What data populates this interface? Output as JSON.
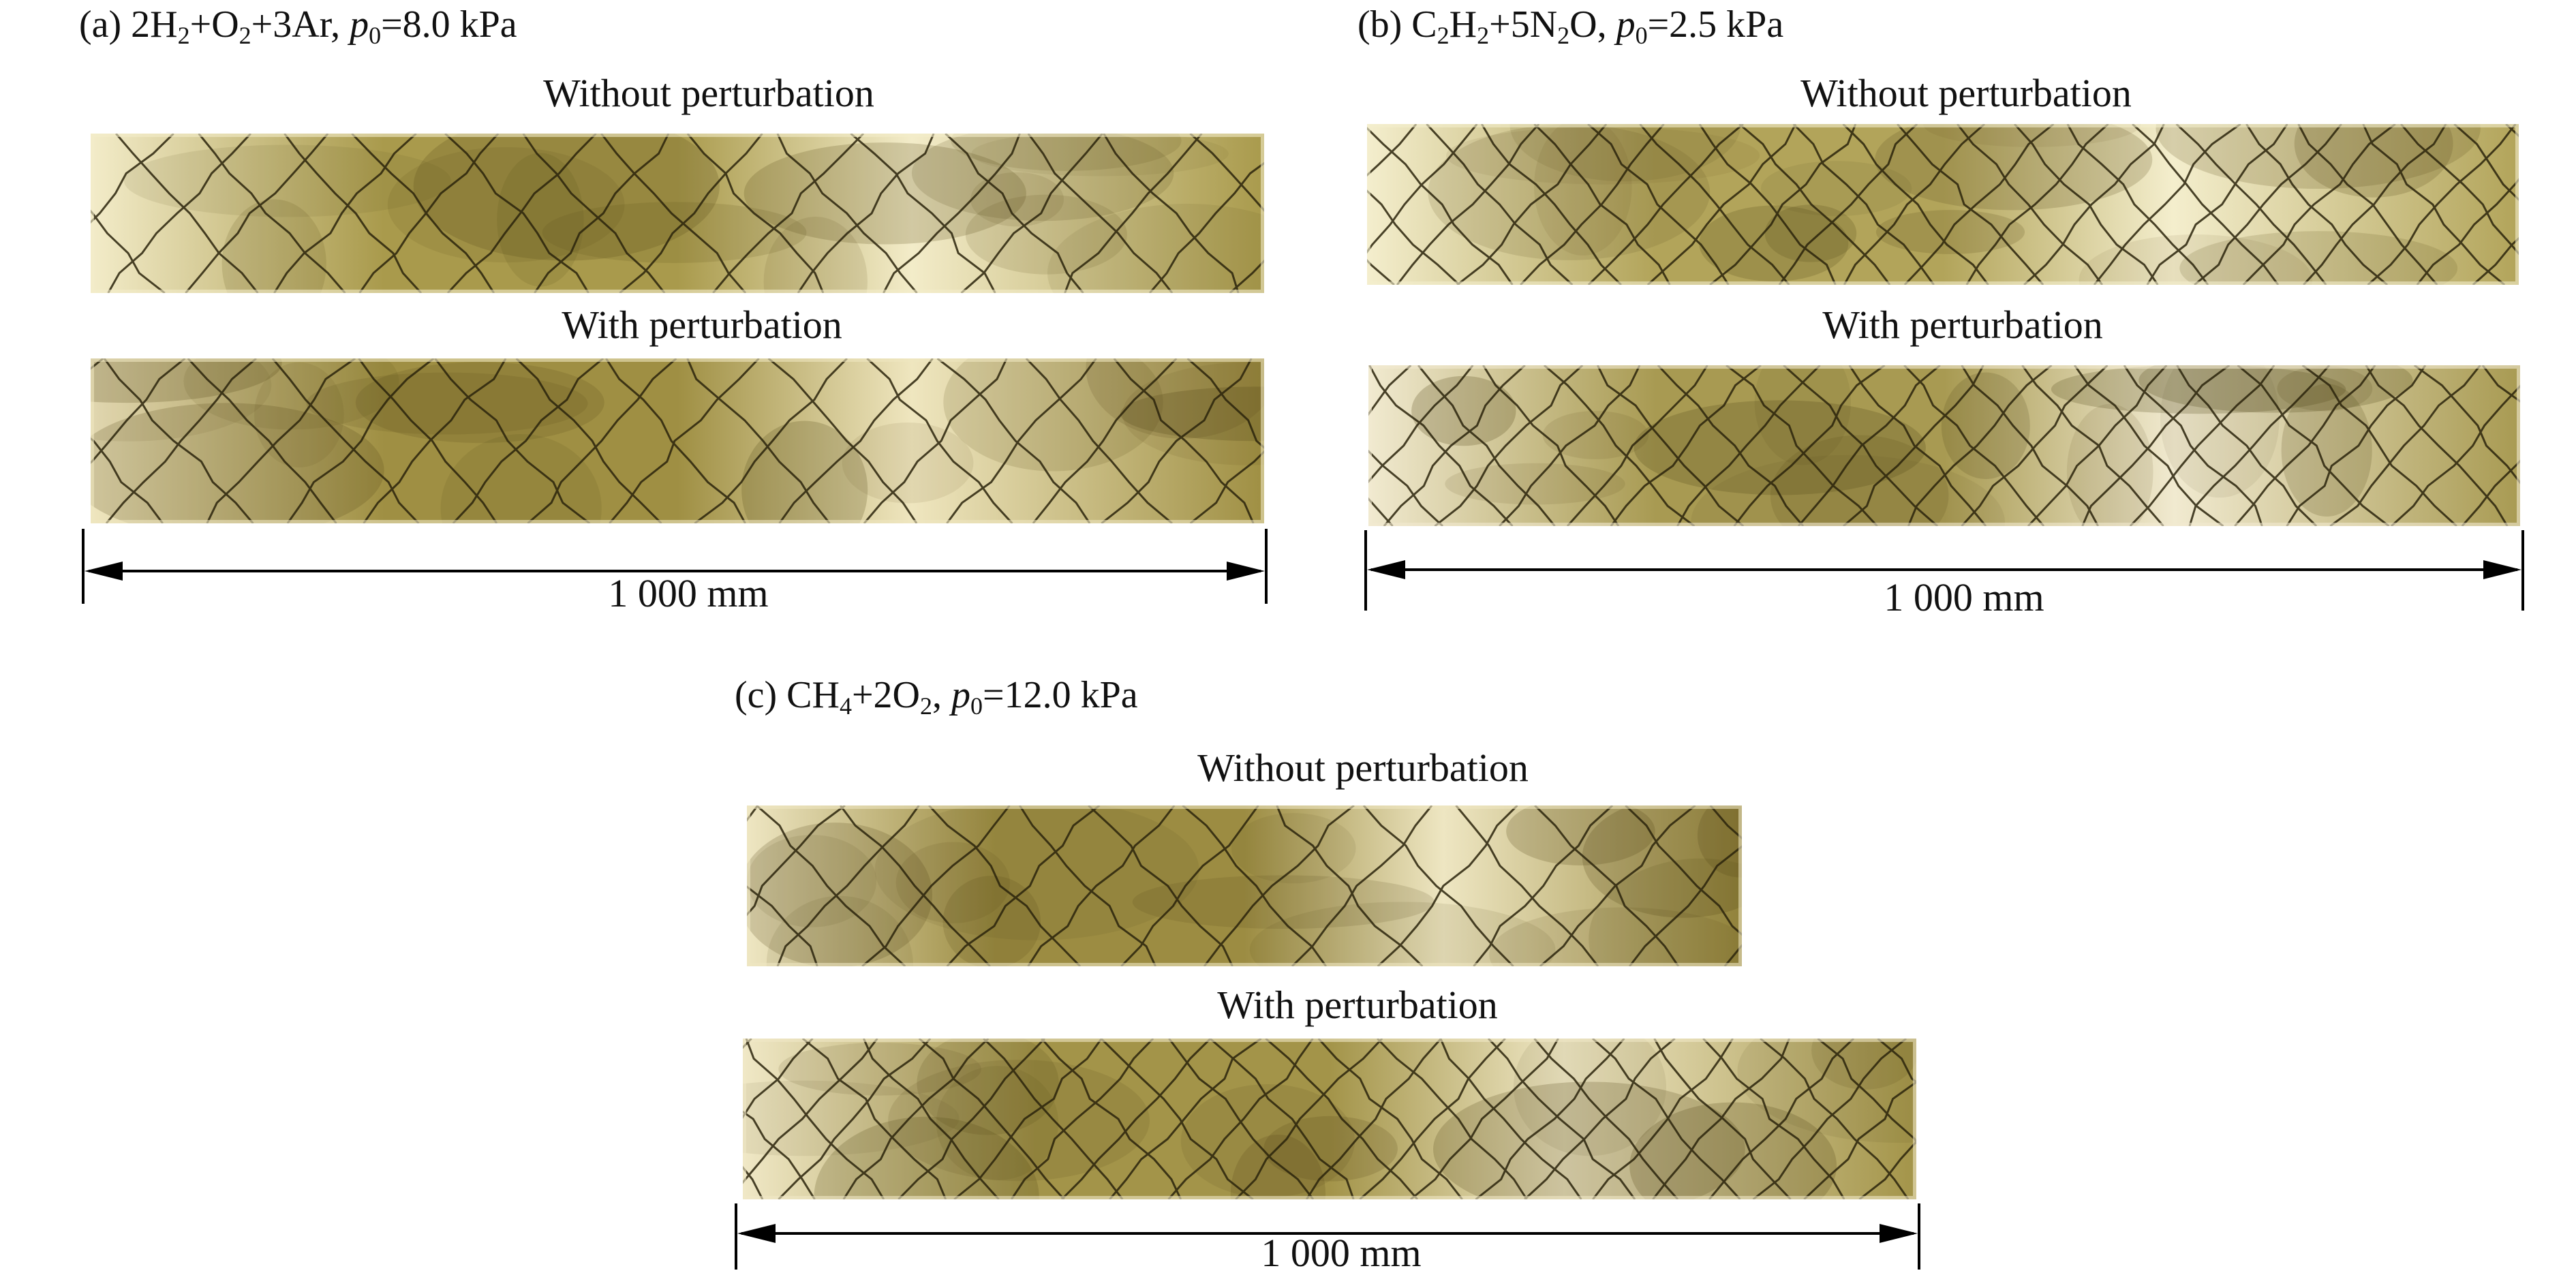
{
  "panels": [
    {
      "id": "a",
      "tag": "(a)",
      "mixture_parts": [
        {
          "t": "2H"
        },
        {
          "sub": "2"
        },
        {
          "t": "+O"
        },
        {
          "sub": "2"
        },
        {
          "t": "+3Ar, "
        }
      ],
      "pressure_symbol": "p",
      "pressure_sub": "0",
      "pressure_value": "=8.0 kPa",
      "plates": [
        {
          "caption": "Without perturbation",
          "palette": [
            "#f3ecc9",
            "#a99a4c",
            "#5b4e1b"
          ]
        },
        {
          "caption": "With perturbation",
          "palette": [
            "#efe6bf",
            "#9f8f43",
            "#544716"
          ]
        }
      ],
      "scale_label": "1 000 mm"
    },
    {
      "id": "b",
      "tag": "(b)",
      "mixture_parts": [
        {
          "t": "C"
        },
        {
          "sub": "2"
        },
        {
          "t": "H"
        },
        {
          "sub": "2"
        },
        {
          "t": "+5N"
        },
        {
          "sub": "2"
        },
        {
          "t": "O, "
        }
      ],
      "pressure_symbol": "p",
      "pressure_sub": "0",
      "pressure_value": "=2.5 kPa",
      "plates": [
        {
          "caption": "Without perturbation",
          "palette": [
            "#f4eecd",
            "#b2a45a",
            "#5f5220"
          ]
        },
        {
          "caption": "With perturbation",
          "palette": [
            "#f1ead0",
            "#a89a52",
            "#4f4315"
          ]
        }
      ],
      "scale_label": "1 000 mm"
    },
    {
      "id": "c",
      "tag": "(c)",
      "mixture_parts": [
        {
          "t": "CH"
        },
        {
          "sub": "4"
        },
        {
          "t": "+2O"
        },
        {
          "sub": "2"
        },
        {
          "t": ", "
        }
      ],
      "pressure_symbol": "p",
      "pressure_sub": "0",
      "pressure_value": "=12.0 kPa",
      "plates": [
        {
          "caption": "Without perturbation",
          "palette": [
            "#eee6c2",
            "#9c8c42",
            "#4e4213"
          ]
        },
        {
          "caption": "With perturbation",
          "palette": [
            "#f0e8c6",
            "#a39449",
            "#524515"
          ]
        }
      ],
      "scale_label": "1 000 mm"
    }
  ]
}
